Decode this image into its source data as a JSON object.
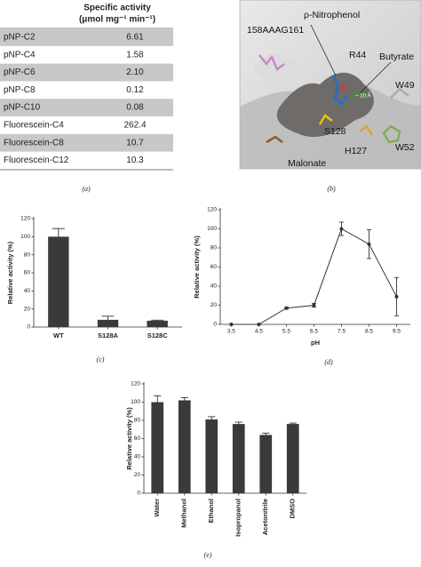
{
  "table": {
    "header": [
      "Specific activity",
      "(μmol mg⁻¹ min⁻¹)"
    ],
    "rows": [
      [
        "pNP-C2",
        "6.61"
      ],
      [
        "pNP-C4",
        "1.58"
      ],
      [
        "pNP-C6",
        "2.10"
      ],
      [
        "pNP-C8",
        "0.12"
      ],
      [
        "pNP-C10",
        "0.08"
      ],
      [
        "Fluorescein-C4",
        "262.4"
      ],
      [
        "Fluorescein-C8",
        "10.7"
      ],
      [
        "Fluorescein-C12",
        "10.3"
      ]
    ],
    "caption": "(a)"
  },
  "panel_b": {
    "labels": [
      "158AAAG161",
      "ρ-Nitrophenol",
      "R44",
      "Butyrate",
      "~ 10 Å",
      "W49",
      "S128",
      "H127",
      "W52",
      "Malonate"
    ],
    "caption": "(b)"
  },
  "chart_data": [
    {
      "type": "bar",
      "categories": [
        "WT",
        "S128A",
        "S128C"
      ],
      "values": [
        100,
        8,
        7
      ],
      "errors": [
        9,
        4,
        0.6
      ],
      "color": "#3a3a3a",
      "ylabel": "Relative activity (%)",
      "ylim": [
        0,
        120
      ],
      "yticks": [
        0,
        20,
        40,
        60,
        80,
        100,
        120
      ],
      "caption": "(c)"
    },
    {
      "type": "line",
      "x": [
        3.5,
        4.5,
        5.5,
        6.5,
        7.5,
        8.5,
        9.5
      ],
      "values": [
        0,
        0,
        17,
        20,
        100,
        84,
        29
      ],
      "errors": [
        0,
        0,
        1,
        2,
        7,
        15,
        20
      ],
      "color": "#333333",
      "xlabel": "pH",
      "ylabel": "Relative activity (%)",
      "xlim": [
        3.1,
        10
      ],
      "xticks": [
        3.5,
        4.5,
        5.5,
        6.5,
        7.5,
        8.5,
        9.5
      ],
      "ylim": [
        0,
        120
      ],
      "yticks": [
        0,
        20,
        40,
        60,
        80,
        100,
        120
      ],
      "caption": "(d)"
    },
    {
      "type": "bar",
      "categories": [
        "Water",
        "Methanol",
        "Ethanol",
        "Isopropanol",
        "Acetonitrile",
        "DMSO"
      ],
      "values": [
        100,
        102,
        81,
        76,
        64,
        76
      ],
      "errors": [
        7,
        3,
        3,
        2,
        2,
        1
      ],
      "color": "#3a3a3a",
      "rotate_labels": true,
      "ylabel": "Relative activity (%)",
      "ylim": [
        0,
        120
      ],
      "yticks": [
        0,
        20,
        40,
        60,
        80,
        100,
        120
      ],
      "caption": "(e)"
    }
  ]
}
